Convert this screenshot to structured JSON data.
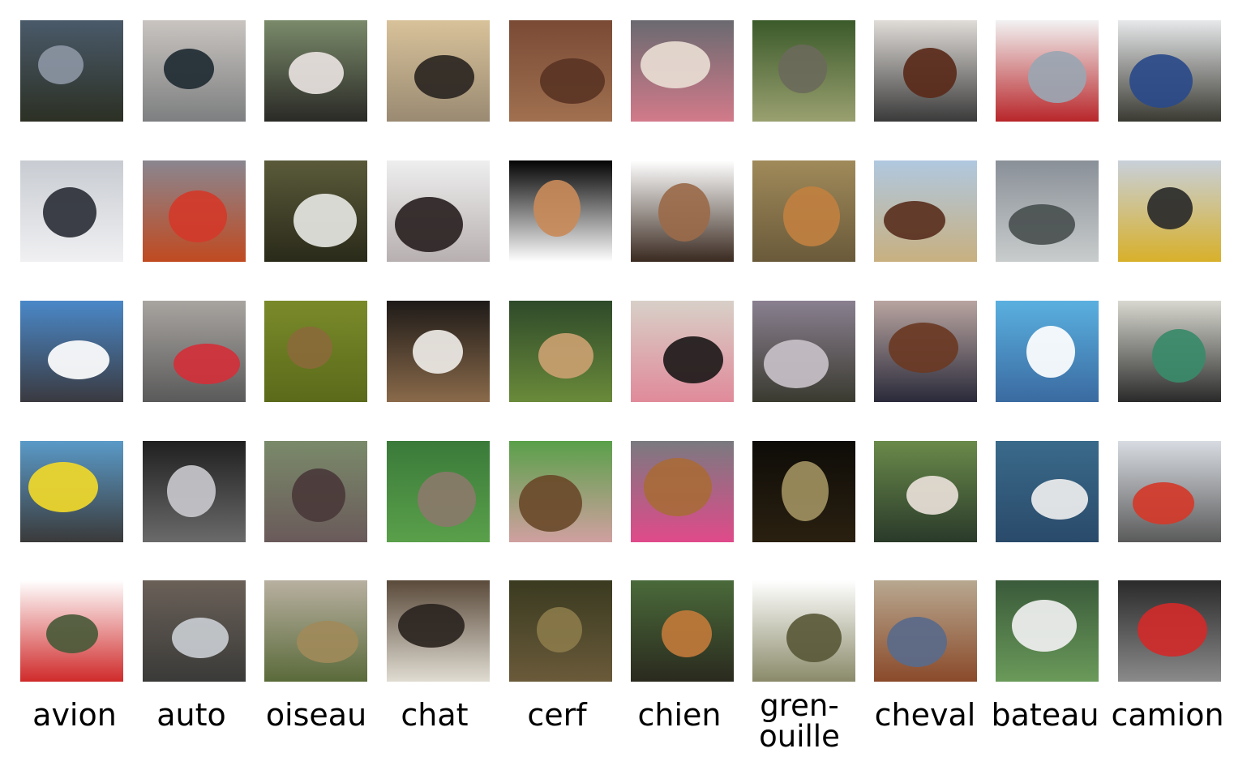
{
  "labels": [
    "avion",
    "auto",
    "oiseau",
    "chat",
    "cerf",
    "chien",
    "gren-\nouille",
    "cheval",
    "bateau",
    "camion"
  ],
  "images": [
    [
      "airplane-over-fence-dusk",
      "dark-sedan-parked",
      "ostrich-head-closeup",
      "cat-lying-on-floor",
      "deer-in-tall-grass",
      "white-puppy-held",
      "frog-in-grass",
      "brown-horse-head-bridle",
      "white-boat-hull",
      "white-semi-truck"
    ],
    [
      "jet-fighter-in-clouds",
      "red-sports-car",
      "egret-standing",
      "black-cat-sleeping",
      "antelope-on-black",
      "small-dog-sitting",
      "frog-on-sand",
      "brown-horse-standing",
      "ship-on-grey-water",
      "truck-with-yellow-cargo"
    ],
    [
      "airliner-blue-sky",
      "red-convertible-mountains",
      "bird-on-post-green",
      "calico-cat-face",
      "deer-in-forest",
      "black-white-dog-face",
      "toad-on-gravel",
      "horses-in-arena",
      "speedboat-blue-water",
      "green-truck"
    ],
    [
      "yellow-biplane",
      "silver-car-showroom",
      "pheasant-closeup",
      "cat-on-grass",
      "reindeer-on-grass",
      "dog-on-couch",
      "frog-at-night",
      "white-horse-handler",
      "boat-on-lake",
      "white-dump-truck"
    ],
    [
      "green-plane-on-white",
      "silver-hatchback",
      "finch-on-branch",
      "tabby-cat-face",
      "elk-in-brush",
      "fox-dog-in-garden",
      "toad-on-white",
      "cowboy-on-horse",
      "motorboat-shore",
      "red-fire-truck"
    ]
  ],
  "palettes": [
    [
      [
        "#4a5a6a",
        "#8b95a3",
        "#2c3024"
      ],
      [
        "#c9c4c0",
        "#1f2b33",
        "#7d7f80"
      ],
      [
        "#7a8a6a",
        "#e8e2e0",
        "#2a2a26"
      ],
      [
        "#d8c29a",
        "#2b2622",
        "#9a8a72"
      ],
      [
        "#7a4a35",
        "#5a3424",
        "#a07050"
      ],
      [
        "#6a6a70",
        "#e8dcd2",
        "#d27a8a"
      ],
      [
        "#3b5a2a",
        "#6a6a5a",
        "#9aa070"
      ],
      [
        "#e0dcd8",
        "#5a2a1a",
        "#3a3a3a"
      ],
      [
        "#f2f2f2",
        "#9aa6b2",
        "#b8262a"
      ],
      [
        "#e6e8ea",
        "#2a4a8a",
        "#3a3a32"
      ]
    ],
    [
      [
        "#c8ccd2",
        "#2c3038",
        "#f0f0f2"
      ],
      [
        "#8a8690",
        "#d23a2a",
        "#c04a20"
      ],
      [
        "#5a5a3a",
        "#e6e6e2",
        "#2a2a1a"
      ],
      [
        "#eeeeee",
        "#2a2222",
        "#b8b0b0"
      ],
      [
        "#040404",
        "#c88a5a",
        "#ffffff"
      ],
      [
        "#ffffff",
        "#9a6a4a",
        "#3a2a20"
      ],
      [
        "#a08a5a",
        "#c08040",
        "#6a5a3a"
      ],
      [
        "#b0c8e0",
        "#5a3020",
        "#c8b080"
      ],
      [
        "#8a9098",
        "#4a5050",
        "#c8cccc"
      ],
      [
        "#c8d0da",
        "#2a2a2a",
        "#d8b02a"
      ]
    ],
    [
      [
        "#4a88c8",
        "#ffffff",
        "#3a3a40"
      ],
      [
        "#a8a4a0",
        "#d2303a",
        "#5a5a5a"
      ],
      [
        "#7a8a2a",
        "#8a6a3a",
        "#5a6a1a"
      ],
      [
        "#1e1a18",
        "#eeeae6",
        "#8a6a4a"
      ],
      [
        "#2e4a2a",
        "#caa070",
        "#6a8a3a"
      ],
      [
        "#d8d0c8",
        "#1e1a1a",
        "#e08a9a"
      ],
      [
        "#8a8090",
        "#c8c0c8",
        "#3a3a30"
      ],
      [
        "#b8a4a0",
        "#6a3a24",
        "#2a2a3a"
      ],
      [
        "#5ab0e0",
        "#ffffff",
        "#3a6aa0"
      ],
      [
        "#d8d8d0",
        "#3a8a6a",
        "#2a2a2a"
      ]
    ],
    [
      [
        "#5a9ac8",
        "#f0d82a",
        "#3a3a3a"
      ],
      [
        "#202020",
        "#c8c8cc",
        "#6a6a6a"
      ],
      [
        "#7a8a6a",
        "#4a3a3a",
        "#6a5a5a"
      ],
      [
        "#3a7a3a",
        "#8a7a6a",
        "#5aa04a"
      ],
      [
        "#5aa04a",
        "#6a4a2a",
        "#d0a0a0"
      ],
      [
        "#7a7a80",
        "#a86a3a",
        "#e04a8a"
      ],
      [
        "#0e0c08",
        "#a09060",
        "#2a2010"
      ],
      [
        "#6a8a4a",
        "#e8e0d8",
        "#2a3a2a"
      ],
      [
        "#3a6a8a",
        "#eeeeee",
        "#2a4a6a"
      ],
      [
        "#d8dce2",
        "#d23a2a",
        "#5a5a5a"
      ]
    ],
    [
      [
        "#ffffff",
        "#4a5a3a",
        "#d02a2a"
      ],
      [
        "#6a6058",
        "#c8ccd0",
        "#3a3a38"
      ],
      [
        "#b8b0a0",
        "#a08a5a",
        "#5a6a3a"
      ],
      [
        "#5a4a3a",
        "#2a2420",
        "#e0dcd2"
      ],
      [
        "#3a3a20",
        "#8a7a4a",
        "#6a5a3a"
      ],
      [
        "#4a6a3a",
        "#c07a3a",
        "#2a2a1e"
      ],
      [
        "#ffffff",
        "#5a5a3a",
        "#8a8a6a"
      ],
      [
        "#b8a890",
        "#5a6a8a",
        "#8a4a2a"
      ],
      [
        "#3a5a3a",
        "#f0f0f0",
        "#6a9a5a"
      ],
      [
        "#2a2a2a",
        "#d02a2a",
        "#8a8a8a"
      ]
    ]
  ]
}
